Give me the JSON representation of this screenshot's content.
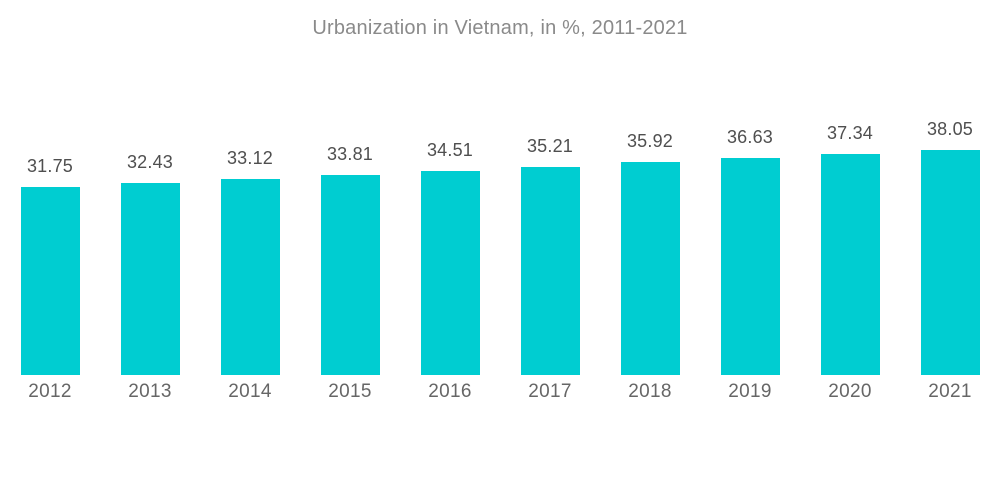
{
  "chart_data": {
    "type": "bar",
    "title": "Urbanization in Vietnam, in %, 2011-2021",
    "categories": [
      "2012",
      "2013",
      "2014",
      "2015",
      "2016",
      "2017",
      "2018",
      "2019",
      "2020",
      "2021"
    ],
    "values": [
      31.75,
      32.43,
      33.12,
      33.81,
      34.51,
      35.21,
      35.92,
      36.63,
      37.34,
      38.05
    ],
    "value_labels": [
      "31.75",
      "32.43",
      "33.12",
      "33.81",
      "34.51",
      "35.21",
      "35.92",
      "36.63",
      "37.34",
      "38.05"
    ],
    "xlabel": "",
    "ylabel": "",
    "ylim": [
      0,
      40
    ],
    "grid": false,
    "legend": "none",
    "axes_hidden": true,
    "bar_color": "#00CDD1",
    "title_color": "#8A8A8A",
    "value_label_color": "#4F4F4F",
    "category_label_color": "#666666",
    "background_color": "#FFFFFF"
  }
}
